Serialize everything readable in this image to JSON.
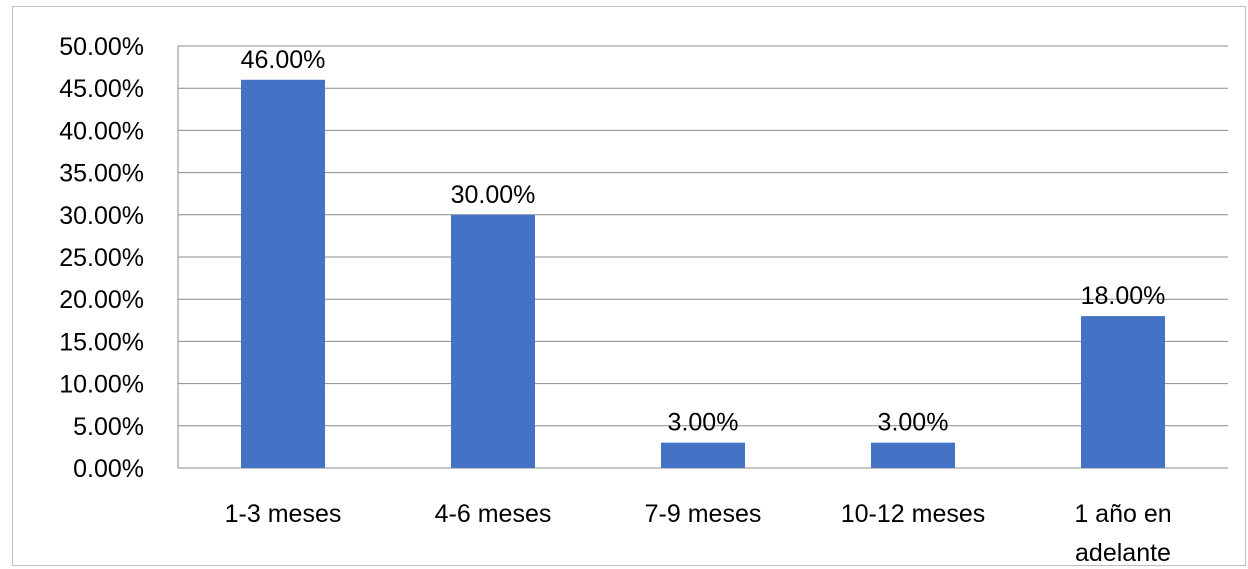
{
  "chart_data": {
    "type": "bar",
    "categories": [
      "1-3 meses",
      "4-6 meses",
      "7-9 meses",
      "10-12 meses",
      "1 año en adelante"
    ],
    "category_lines": [
      [
        "1-3 meses"
      ],
      [
        "4-6 meses"
      ],
      [
        "7-9 meses"
      ],
      [
        "10-12 meses"
      ],
      [
        "1 año en",
        "adelante"
      ]
    ],
    "values": [
      46.0,
      30.0,
      3.0,
      3.0,
      18.0
    ],
    "data_labels": [
      "46.00%",
      "30.00%",
      "3.00%",
      "3.00%",
      "18.00%"
    ],
    "y_ticks": [
      "0.00%",
      "5.00%",
      "10.00%",
      "15.00%",
      "20.00%",
      "25.00%",
      "30.00%",
      "35.00%",
      "40.00%",
      "45.00%",
      "50.00%"
    ],
    "ylim": [
      0,
      50
    ],
    "grid": true,
    "legend": "none",
    "bar_color": "#4472c4",
    "grid_color": "#8c8c8c"
  }
}
